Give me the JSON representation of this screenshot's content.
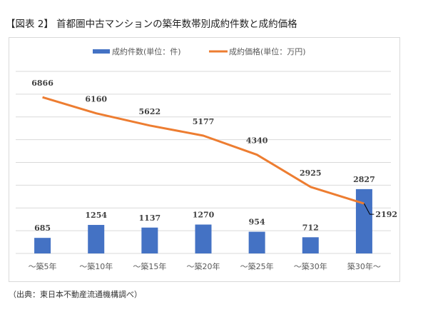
{
  "title": "【図表 2】 首都圏中古マンションの築年数帯別成約件数と成約価格",
  "source": "（出典：東日本不動産流通機構調べ）",
  "colors": {
    "bar": "#4472c4",
    "line": "#ed7d31",
    "grid": "#d9d9d9",
    "leader": "#000000"
  },
  "chart_data": {
    "type": "bar",
    "title": "首都圏中古マンションの築年数帯別成約件数と成約価格",
    "xlabel": "",
    "ylabel": "",
    "ylim": [
      0,
      8000
    ],
    "grid": true,
    "legend_position": "top-center",
    "categories": [
      "～築5年",
      "～築10年",
      "～築15年",
      "～築20年",
      "～築25年",
      "～築30年",
      "築30年～"
    ],
    "series": [
      {
        "name": "成約件数(単位：件)",
        "type": "bar",
        "values": [
          685,
          1254,
          1137,
          1270,
          954,
          712,
          2827
        ]
      },
      {
        "name": "成約価格(単位：万円)",
        "type": "line",
        "values": [
          6866,
          6160,
          5622,
          5177,
          4340,
          2925,
          2192
        ]
      }
    ]
  }
}
